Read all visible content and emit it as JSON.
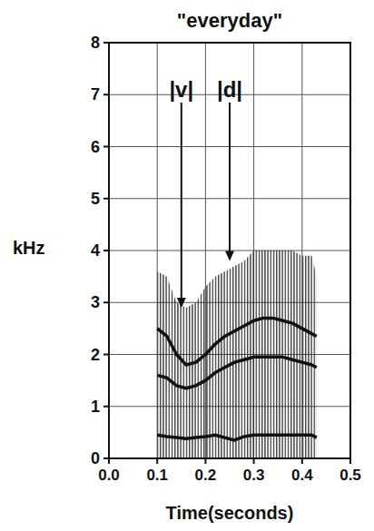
{
  "chart_data": {
    "type": "line",
    "title": "\"everyday\"",
    "x_label": "Time(seconds)",
    "y_label": "kHz",
    "x": [
      0.1,
      0.12,
      0.14,
      0.16,
      0.18,
      0.2,
      0.22,
      0.24,
      0.26,
      0.28,
      0.3,
      0.32,
      0.34,
      0.36,
      0.38,
      0.4,
      0.42,
      0.43
    ],
    "series": [
      {
        "type": "area",
        "color": "#222222",
        "values": [
          3.6,
          3.5,
          3.0,
          2.9,
          3.0,
          3.3,
          3.5,
          3.6,
          3.7,
          3.8,
          4.0,
          4.0,
          4.0,
          4.0,
          4.0,
          3.9,
          3.9,
          3.5
        ]
      },
      {
        "type": "line",
        "color": "#111111",
        "values": [
          2.5,
          2.35,
          2.0,
          1.8,
          1.85,
          2.0,
          2.2,
          2.35,
          2.45,
          2.55,
          2.65,
          2.7,
          2.7,
          2.65,
          2.6,
          2.5,
          2.4,
          2.35
        ]
      },
      {
        "type": "line",
        "color": "#111111",
        "values": [
          1.6,
          1.55,
          1.4,
          1.35,
          1.4,
          1.5,
          1.65,
          1.75,
          1.85,
          1.9,
          1.95,
          1.95,
          1.95,
          1.95,
          1.9,
          1.85,
          1.8,
          1.75
        ]
      },
      {
        "type": "line",
        "color": "#111111",
        "values": [
          0.45,
          0.42,
          0.4,
          0.38,
          0.4,
          0.42,
          0.45,
          0.4,
          0.35,
          0.42,
          0.45,
          0.45,
          0.45,
          0.45,
          0.45,
          0.45,
          0.45,
          0.4
        ]
      }
    ],
    "annotations": [
      {
        "text": "|v|",
        "x": 0.15,
        "y": 2.9
      },
      {
        "text": "|d|",
        "x": 0.25,
        "y": 3.8
      }
    ],
    "xlim": [
      0,
      0.5
    ],
    "ylim": [
      0,
      8
    ],
    "xticks": [
      {
        "value": 0,
        "label": "0.0"
      },
      {
        "value": 0.1,
        "label": "0.1"
      },
      {
        "value": 0.2,
        "label": "0.2"
      },
      {
        "value": 0.3,
        "label": "0.3"
      },
      {
        "value": 0.4,
        "label": "0.4"
      },
      {
        "value": 0.5,
        "label": "0.5"
      }
    ],
    "yticks": [
      0,
      1,
      2,
      3,
      4,
      5,
      6,
      7,
      8
    ],
    "grid": true
  }
}
